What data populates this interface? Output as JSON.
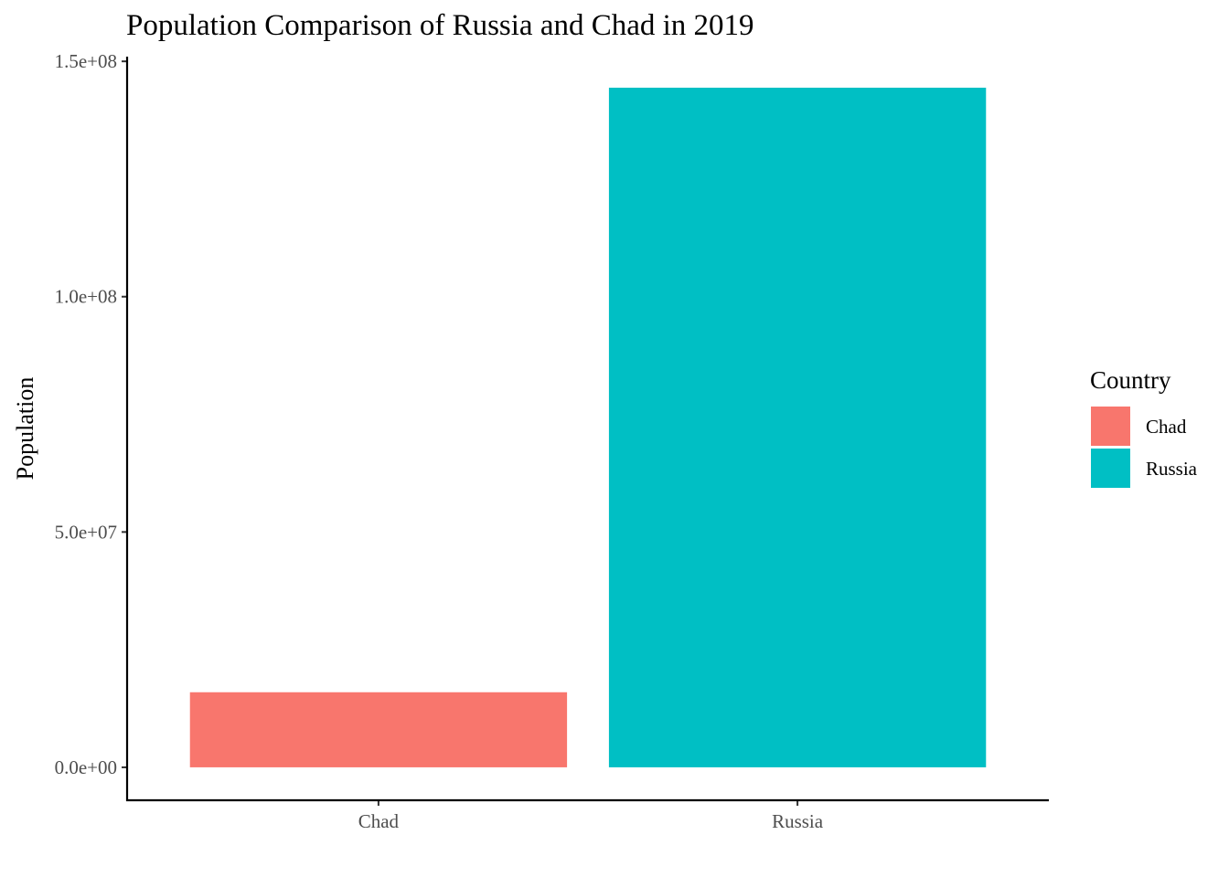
{
  "chart_data": {
    "type": "bar",
    "title": "Population Comparison of Russia and Chad in 2019",
    "xlabel": "",
    "ylabel": "Population",
    "categories": [
      "Chad",
      "Russia"
    ],
    "values": [
      15950000,
      144400000
    ],
    "colors": [
      "#F8766D",
      "#00BFC4"
    ],
    "ylim": [
      -7000000,
      151000000
    ],
    "yticks": [
      {
        "value": 0,
        "label": "0.0e+00"
      },
      {
        "value": 50000000,
        "label": "5.0e+07"
      },
      {
        "value": 100000000,
        "label": "1.0e+08"
      },
      {
        "value": 150000000,
        "label": "1.5e+08"
      }
    ],
    "grid": false,
    "legend": {
      "title": "Country",
      "position": "right",
      "items": [
        {
          "label": "Chad",
          "color": "#F8766D"
        },
        {
          "label": "Russia",
          "color": "#00BFC4"
        }
      ]
    }
  }
}
